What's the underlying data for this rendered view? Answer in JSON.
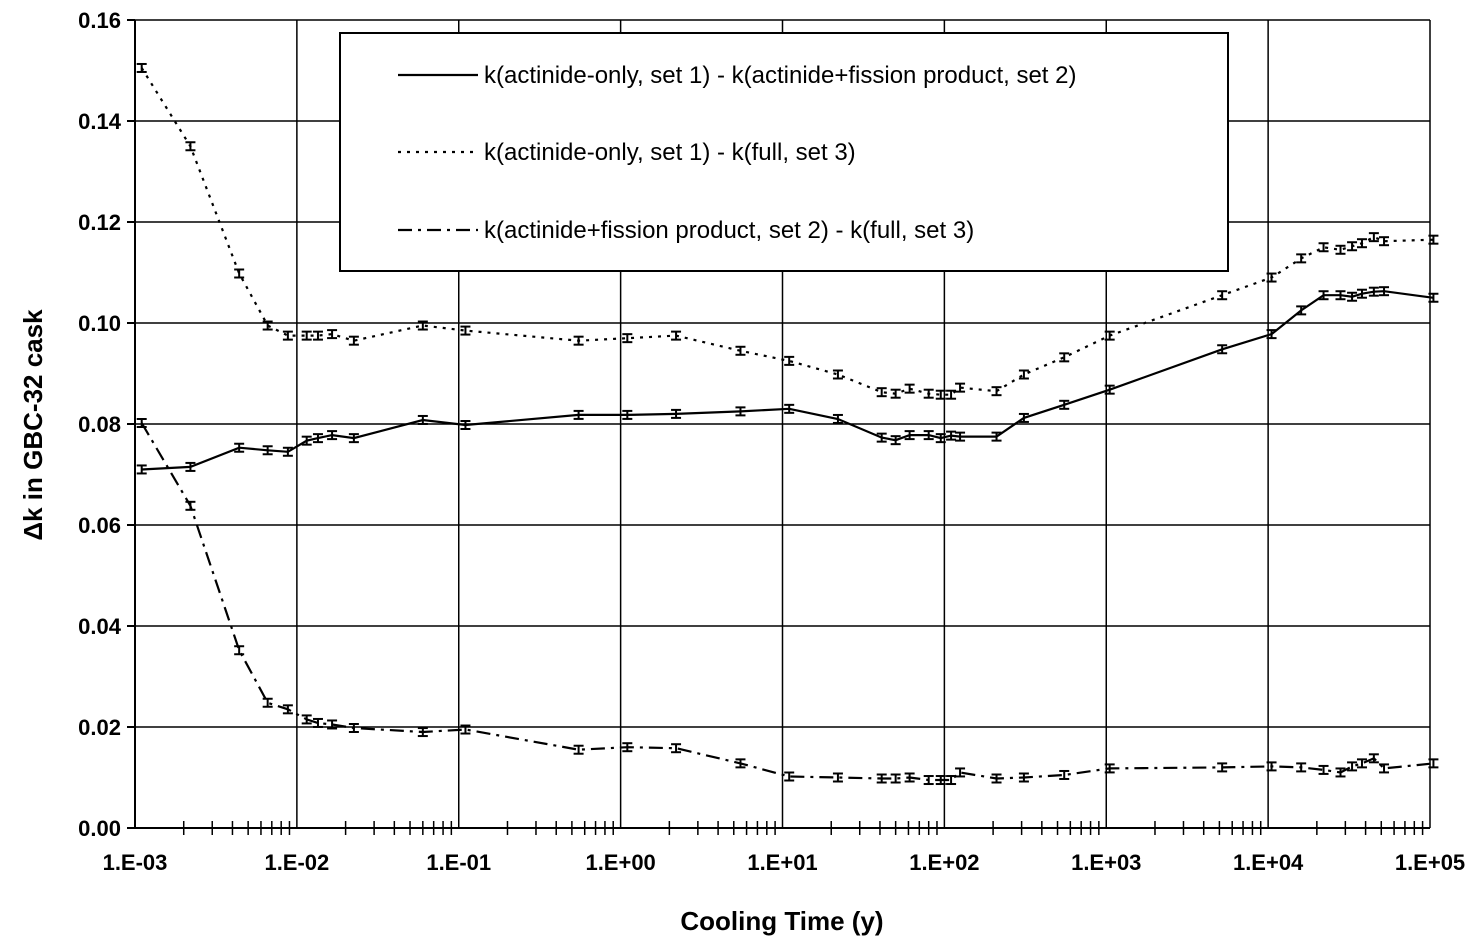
{
  "chart_data": {
    "type": "line",
    "title": "",
    "xlabel": "Cooling Time (y)",
    "ylabel": "Δk in GBC-32 cask",
    "xscale": "log",
    "xlim": [
      0.001,
      100000
    ],
    "ylim": [
      0,
      0.16
    ],
    "grid": true,
    "legend_position": "top-center",
    "x_tick_labels": [
      "1.E-03",
      "1.E-02",
      "1.E-01",
      "1.E+00",
      "1.E+01",
      "1.E+02",
      "1.E+03",
      "1.E+04",
      "1.E+05"
    ],
    "y_tick_labels": [
      "0.00",
      "0.02",
      "0.04",
      "0.06",
      "0.08",
      "0.10",
      "0.12",
      "0.14",
      "0.16"
    ],
    "series": [
      {
        "name": "k(actinide-only, set 1) - k(actinide+fission product, set 2)",
        "line_style": "solid",
        "x": [
          0.0011,
          0.0022,
          0.0044,
          0.0066,
          0.0088,
          0.0115,
          0.0135,
          0.0165,
          0.0225,
          0.06,
          0.11,
          0.55,
          1.1,
          2.2,
          5.5,
          11,
          22,
          41,
          50,
          61,
          80,
          95,
          110,
          125,
          210,
          310,
          550,
          1050,
          5200,
          10500,
          16000,
          22000,
          28000,
          33000,
          38000,
          45000,
          52000,
          105000
        ],
        "values": [
          0.071,
          0.0715,
          0.0753,
          0.0748,
          0.0745,
          0.0767,
          0.0772,
          0.0778,
          0.0772,
          0.0808,
          0.0798,
          0.0818,
          0.0818,
          0.082,
          0.0825,
          0.083,
          0.081,
          0.0773,
          0.0768,
          0.0778,
          0.0778,
          0.0772,
          0.0777,
          0.0775,
          0.0775,
          0.0812,
          0.0838,
          0.0868,
          0.0948,
          0.0978,
          0.1025,
          0.1055,
          0.1055,
          0.1052,
          0.1058,
          0.1062,
          0.1063,
          0.105
        ]
      },
      {
        "name": "k(actinide-only, set 1) - k(full, set 3)",
        "line_style": "dotted",
        "x": [
          0.0011,
          0.0022,
          0.0044,
          0.0066,
          0.0088,
          0.0115,
          0.0135,
          0.0165,
          0.0225,
          0.06,
          0.11,
          0.55,
          1.1,
          2.2,
          5.5,
          11,
          22,
          41,
          50,
          61,
          80,
          95,
          110,
          125,
          210,
          310,
          550,
          1050,
          5200,
          10500,
          16000,
          22000,
          28000,
          33000,
          38000,
          45000,
          52000,
          105000
        ],
        "values": [
          0.1505,
          0.135,
          0.1098,
          0.0995,
          0.0975,
          0.0975,
          0.0975,
          0.0978,
          0.0965,
          0.0995,
          0.0985,
          0.0965,
          0.097,
          0.0975,
          0.0945,
          0.0925,
          0.0898,
          0.0863,
          0.086,
          0.087,
          0.086,
          0.0858,
          0.0858,
          0.0872,
          0.0865,
          0.0898,
          0.0932,
          0.0975,
          0.1055,
          0.109,
          0.1128,
          0.115,
          0.1145,
          0.1152,
          0.1158,
          0.117,
          0.1162,
          0.1165
        ]
      },
      {
        "name": "k(actinide+fission product, set 2) - k(full, set 3)",
        "line_style": "dash-dot",
        "x": [
          0.0011,
          0.0022,
          0.0044,
          0.0066,
          0.0088,
          0.0115,
          0.0135,
          0.0165,
          0.0225,
          0.06,
          0.11,
          0.55,
          1.1,
          2.2,
          5.5,
          11,
          22,
          41,
          50,
          61,
          80,
          95,
          110,
          125,
          210,
          310,
          550,
          1050,
          5200,
          10500,
          16000,
          22000,
          28000,
          33000,
          38000,
          45000,
          52000,
          105000
        ],
        "values": [
          0.0802,
          0.0638,
          0.0352,
          0.0248,
          0.0235,
          0.0215,
          0.0208,
          0.0205,
          0.0198,
          0.019,
          0.0195,
          0.0155,
          0.016,
          0.0158,
          0.0128,
          0.0102,
          0.01,
          0.0098,
          0.0098,
          0.01,
          0.0095,
          0.0095,
          0.0095,
          0.011,
          0.0098,
          0.01,
          0.0105,
          0.0118,
          0.012,
          0.0122,
          0.012,
          0.0115,
          0.011,
          0.0122,
          0.0128,
          0.0138,
          0.0118,
          0.0128
        ]
      }
    ]
  }
}
